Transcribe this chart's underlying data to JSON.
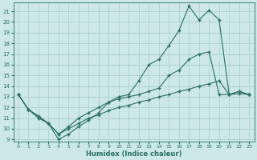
{
  "xlabel": "Humidex (Indice chaleur)",
  "bg_color": "#cce8e8",
  "grid_color": "#aacece",
  "line_color": "#2a7060",
  "xlim": [
    -0.5,
    23.5
  ],
  "ylim": [
    8.8,
    21.8
  ],
  "yticks": [
    9,
    10,
    11,
    12,
    13,
    14,
    15,
    16,
    17,
    18,
    19,
    20,
    21
  ],
  "xticks": [
    0,
    1,
    2,
    3,
    4,
    5,
    6,
    7,
    8,
    9,
    10,
    11,
    12,
    13,
    14,
    15,
    16,
    17,
    18,
    19,
    20,
    21,
    22,
    23
  ],
  "line1_x": [
    0,
    1,
    3,
    4,
    5,
    6,
    7,
    8,
    9,
    10,
    11,
    12,
    13,
    14,
    15,
    16,
    17,
    18,
    19,
    20,
    21,
    22,
    23
  ],
  "line1_y": [
    13.2,
    11.8,
    10.5,
    9.0,
    9.5,
    10.2,
    10.8,
    11.5,
    12.5,
    13.0,
    13.2,
    14.5,
    16.0,
    16.5,
    17.8,
    19.2,
    21.5,
    20.2,
    21.1,
    20.2,
    13.2,
    13.5,
    13.2
  ],
  "line2_x": [
    0,
    1,
    2,
    3,
    4,
    5,
    6,
    7,
    8,
    9,
    10,
    11,
    12,
    13,
    14,
    15,
    16,
    17,
    18,
    19,
    20,
    21,
    22,
    23
  ],
  "line2_y": [
    13.2,
    11.8,
    11.2,
    10.5,
    9.5,
    10.2,
    11.0,
    11.5,
    12.0,
    12.5,
    12.8,
    13.0,
    13.2,
    13.5,
    13.8,
    15.0,
    15.5,
    16.5,
    17.0,
    17.2,
    13.2,
    13.2,
    13.5,
    13.2
  ],
  "line3_x": [
    0,
    1,
    2,
    3,
    4,
    5,
    6,
    7,
    8,
    9,
    10,
    11,
    12,
    13,
    14,
    15,
    16,
    17,
    18,
    19,
    20,
    21,
    22,
    23
  ],
  "line3_y": [
    13.2,
    11.8,
    11.0,
    10.5,
    9.5,
    10.0,
    10.5,
    11.0,
    11.3,
    11.7,
    12.0,
    12.2,
    12.5,
    12.7,
    13.0,
    13.2,
    13.5,
    13.7,
    14.0,
    14.2,
    14.5,
    13.2,
    13.3,
    13.2
  ]
}
